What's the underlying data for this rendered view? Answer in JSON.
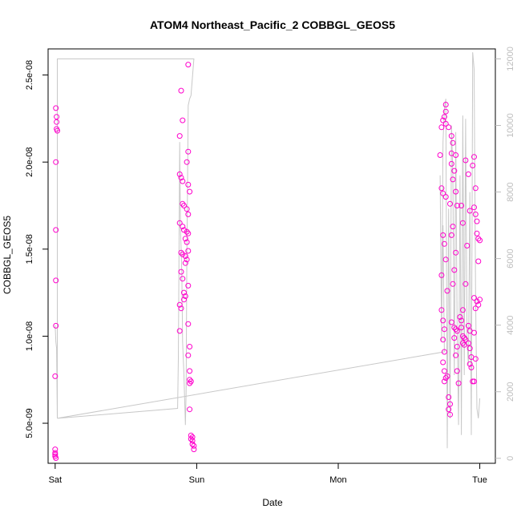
{
  "chart_data": {
    "type": "scatter",
    "title": "ATOM4 Northeast_Pacific_2 COBBGL_GEOS5",
    "xlabel": "Date",
    "ylabel": "COBBGL_GEOS5",
    "x_ticks": [
      "Sat",
      "Sun",
      "Mon",
      "Tue"
    ],
    "x_range_days": [
      -0.05,
      3.11
    ],
    "y_left_range": [
      2.7e-09,
      2.65e-08
    ],
    "y_left_ticks": [
      {
        "value": 5e-09,
        "label": "5.0e-09"
      },
      {
        "value": 1e-08,
        "label": "1.0e-08"
      },
      {
        "value": 1.5e-08,
        "label": "1.5e-08"
      },
      {
        "value": 2e-08,
        "label": "2.0e-08"
      },
      {
        "value": 2.5e-08,
        "label": "2.5e-08"
      }
    ],
    "y_right_range": [
      -150,
      12300
    ],
    "y_right_ticks": [
      0,
      2000,
      4000,
      6000,
      8000,
      10000,
      12000
    ],
    "colors": {
      "points": "#ff00cc",
      "line": "#c8c8c8",
      "right_axis": "#bdbdbd",
      "axis": "#000000"
    },
    "series": [
      {
        "type": "scatter",
        "axis": "left",
        "points": [
          [
            0.005,
            2.31e-08
          ],
          [
            0.01,
            2.26e-08
          ],
          [
            0.01,
            2.23e-08
          ],
          [
            0.01,
            2.19e-08
          ],
          [
            0.015,
            2.18e-08
          ],
          [
            0.005,
            2e-08
          ],
          [
            0.005,
            1.61e-08
          ],
          [
            0.005,
            1.32e-08
          ],
          [
            0.005,
            1.06e-08
          ],
          [
            0.0,
            7.7e-09
          ],
          [
            0.0,
            3.5e-09
          ],
          [
            0.0,
            3.3e-09
          ],
          [
            0.0,
            3.2e-09
          ],
          [
            0.0,
            3.1e-09
          ],
          [
            0.005,
            3e-09
          ],
          [
            0.94,
            2.56e-08
          ],
          [
            0.89,
            2.41e-08
          ],
          [
            0.9,
            2.24e-08
          ],
          [
            0.88,
            2.15e-08
          ],
          [
            0.94,
            2.06e-08
          ],
          [
            0.93,
            2e-08
          ],
          [
            0.88,
            1.93e-08
          ],
          [
            0.89,
            1.91e-08
          ],
          [
            0.9,
            1.89e-08
          ],
          [
            0.94,
            1.87e-08
          ],
          [
            0.95,
            1.83e-08
          ],
          [
            0.9,
            1.76e-08
          ],
          [
            0.91,
            1.75e-08
          ],
          [
            0.93,
            1.73e-08
          ],
          [
            0.94,
            1.7e-08
          ],
          [
            0.88,
            1.65e-08
          ],
          [
            0.9,
            1.63e-08
          ],
          [
            0.91,
            1.61e-08
          ],
          [
            0.93,
            1.6e-08
          ],
          [
            0.94,
            1.59e-08
          ],
          [
            0.92,
            1.56e-08
          ],
          [
            0.93,
            1.54e-08
          ],
          [
            0.89,
            1.48e-08
          ],
          [
            0.9,
            1.47e-08
          ],
          [
            0.92,
            1.46e-08
          ],
          [
            0.93,
            1.44e-08
          ],
          [
            0.94,
            1.49e-08
          ],
          [
            0.92,
            1.42e-08
          ],
          [
            0.89,
            1.37e-08
          ],
          [
            0.9,
            1.33e-08
          ],
          [
            0.94,
            1.29e-08
          ],
          [
            0.91,
            1.25e-08
          ],
          [
            0.92,
            1.23e-08
          ],
          [
            0.91,
            1.21e-08
          ],
          [
            0.88,
            1.18e-08
          ],
          [
            0.89,
            1.16e-08
          ],
          [
            0.94,
            1.07e-08
          ],
          [
            0.88,
            1.03e-08
          ],
          [
            0.95,
            9.4e-09
          ],
          [
            0.94,
            8.9e-09
          ],
          [
            0.95,
            8e-09
          ],
          [
            0.95,
            7.5e-09
          ],
          [
            0.96,
            7.4e-09
          ],
          [
            0.95,
            7.3e-09
          ],
          [
            0.95,
            5.8e-09
          ],
          [
            0.96,
            4.3e-09
          ],
          [
            0.97,
            4.2e-09
          ],
          [
            0.96,
            4.1e-09
          ],
          [
            0.97,
            4e-09
          ],
          [
            0.97,
            3.8e-09
          ],
          [
            0.98,
            3.7e-09
          ],
          [
            0.98,
            3.5e-09
          ],
          [
            2.72,
            2.04e-08
          ],
          [
            2.73,
            2.2e-08
          ],
          [
            2.74,
            2.24e-08
          ],
          [
            2.76,
            2.33e-08
          ],
          [
            2.76,
            2.29e-08
          ],
          [
            2.75,
            2.26e-08
          ],
          [
            2.76,
            2.22e-08
          ],
          [
            2.78,
            2.2e-08
          ],
          [
            2.73,
            1.85e-08
          ],
          [
            2.74,
            1.82e-08
          ],
          [
            2.76,
            1.8e-08
          ],
          [
            2.79,
            1.76e-08
          ],
          [
            2.74,
            1.58e-08
          ],
          [
            2.75,
            1.53e-08
          ],
          [
            2.76,
            1.44e-08
          ],
          [
            2.73,
            1.35e-08
          ],
          [
            2.77,
            1.26e-08
          ],
          [
            2.73,
            1.15e-08
          ],
          [
            2.74,
            1.09e-08
          ],
          [
            2.75,
            1.04e-08
          ],
          [
            2.74,
            9.8e-09
          ],
          [
            2.75,
            9.1e-09
          ],
          [
            2.74,
            8.5e-09
          ],
          [
            2.75,
            8e-09
          ],
          [
            2.76,
            7.6e-09
          ],
          [
            2.77,
            7.7e-09
          ],
          [
            2.75,
            7.4e-09
          ],
          [
            2.78,
            6.5e-09
          ],
          [
            2.79,
            6.1e-09
          ],
          [
            2.78,
            5.8e-09
          ],
          [
            2.79,
            5.5e-09
          ],
          [
            2.8,
            2.15e-08
          ],
          [
            2.81,
            2.11e-08
          ],
          [
            2.8,
            2.05e-08
          ],
          [
            2.83,
            2.04e-08
          ],
          [
            2.8,
            1.99e-08
          ],
          [
            2.82,
            1.95e-08
          ],
          [
            2.81,
            1.9e-08
          ],
          [
            2.83,
            1.83e-08
          ],
          [
            2.84,
            1.75e-08
          ],
          [
            2.81,
            1.63e-08
          ],
          [
            2.8,
            1.58e-08
          ],
          [
            2.83,
            1.48e-08
          ],
          [
            2.82,
            1.38e-08
          ],
          [
            2.81,
            1.3e-08
          ],
          [
            2.8,
            1.08e-08
          ],
          [
            2.82,
            1.05e-08
          ],
          [
            2.83,
            1.04e-08
          ],
          [
            2.84,
            1.03e-08
          ],
          [
            2.82,
            9.9e-09
          ],
          [
            2.84,
            9.4e-09
          ],
          [
            2.83,
            8.9e-09
          ],
          [
            2.84,
            8e-09
          ],
          [
            2.85,
            7.3e-09
          ],
          [
            2.86,
            1.11e-08
          ],
          [
            2.87,
            1.09e-08
          ],
          [
            2.88,
            1.15e-08
          ],
          [
            2.87,
            1.05e-08
          ],
          [
            2.88,
            1e-08
          ],
          [
            2.89,
            9.9e-09
          ],
          [
            2.9,
            9.8e-09
          ],
          [
            2.88,
            9.6e-09
          ],
          [
            2.89,
            9.5e-09
          ],
          [
            2.9,
            1.3e-08
          ],
          [
            2.88,
            1.65e-08
          ],
          [
            2.87,
            1.75e-08
          ],
          [
            2.9,
            2.01e-08
          ],
          [
            2.92,
            1.93e-08
          ],
          [
            2.93,
            1.72e-08
          ],
          [
            2.91,
            1.52e-08
          ],
          [
            2.92,
            1.06e-08
          ],
          [
            2.93,
            1.03e-08
          ],
          [
            2.92,
            9.6e-09
          ],
          [
            2.93,
            9.3e-09
          ],
          [
            2.94,
            8.8e-09
          ],
          [
            2.93,
            8.4e-09
          ],
          [
            2.94,
            8.2e-09
          ],
          [
            2.95,
            7.4e-09
          ],
          [
            2.96,
            7.4e-09
          ],
          [
            2.95,
            1.98e-08
          ],
          [
            2.96,
            2.03e-08
          ],
          [
            2.97,
            1.85e-08
          ],
          [
            2.96,
            1.74e-08
          ],
          [
            2.97,
            1.7e-08
          ],
          [
            2.98,
            1.66e-08
          ],
          [
            2.98,
            1.59e-08
          ],
          [
            2.99,
            1.56e-08
          ],
          [
            3.0,
            1.55e-08
          ],
          [
            2.99,
            1.43e-08
          ],
          [
            2.96,
            1.22e-08
          ],
          [
            2.98,
            1.2e-08
          ],
          [
            2.99,
            1.18e-08
          ],
          [
            3.0,
            1.21e-08
          ],
          [
            2.97,
            1.16e-08
          ],
          [
            2.96,
            1.02e-08
          ],
          [
            2.97,
            8.7e-09
          ]
        ]
      },
      {
        "type": "line",
        "axis": "right",
        "points": [
          [
            0.0,
            4000
          ],
          [
            0.005,
            3500
          ],
          [
            0.01,
            3300
          ],
          [
            0.015,
            1200
          ],
          [
            0.015,
            12000
          ],
          [
            0.55,
            12000
          ],
          [
            0.98,
            12000
          ],
          [
            0.96,
            10900
          ],
          [
            0.95,
            10800
          ],
          [
            0.94,
            10600
          ],
          [
            0.935,
            8000
          ],
          [
            0.93,
            6000
          ],
          [
            0.925,
            2000
          ],
          [
            0.92,
            1000
          ],
          [
            0.91,
            2500
          ],
          [
            0.9,
            3500
          ],
          [
            0.895,
            5500
          ],
          [
            0.885,
            7000
          ],
          [
            0.88,
            9500
          ],
          [
            0.875,
            6000
          ],
          [
            0.87,
            3000
          ],
          [
            0.865,
            1500
          ],
          [
            0.015,
            1200
          ],
          [
            2.75,
            3200
          ],
          [
            2.74,
            7000
          ],
          [
            2.73,
            4000
          ],
          [
            2.72,
            8500
          ],
          [
            2.73,
            3500
          ],
          [
            2.74,
            9500
          ],
          [
            2.75,
            10500
          ],
          [
            2.76,
            10800
          ],
          [
            2.77,
            300
          ],
          [
            2.78,
            7500
          ],
          [
            2.79,
            1200
          ],
          [
            2.8,
            10000
          ],
          [
            2.81,
            8500
          ],
          [
            2.82,
            2500
          ],
          [
            2.83,
            9800
          ],
          [
            2.84,
            4000
          ],
          [
            2.85,
            1000
          ],
          [
            2.86,
            8500
          ],
          [
            2.87,
            700
          ],
          [
            2.88,
            10300
          ],
          [
            2.89,
            2500
          ],
          [
            2.9,
            10200
          ],
          [
            2.91,
            3500
          ],
          [
            2.92,
            2800
          ],
          [
            2.93,
            8000
          ],
          [
            2.94,
            700
          ],
          [
            2.95,
            12200
          ],
          [
            2.96,
            11700
          ],
          [
            2.97,
            5000
          ],
          [
            2.98,
            1500
          ],
          [
            2.99,
            1200
          ],
          [
            3.0,
            1800
          ]
        ]
      }
    ]
  }
}
